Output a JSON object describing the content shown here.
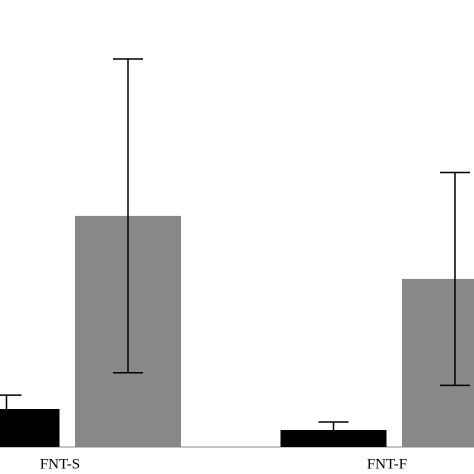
{
  "chart_data": {
    "type": "bar",
    "categories": [
      "FNT-S",
      "FNT-F"
    ],
    "series": [
      {
        "color": "#000000",
        "values": [
          8.5,
          3.8
        ],
        "errors": [
          3.1,
          1.8
        ]
      },
      {
        "color": "#888888",
        "values": [
          51.7,
          37.6
        ],
        "errors": [
          35.1,
          23.8
        ]
      }
    ],
    "ylim": [
      0,
      100
    ]
  }
}
